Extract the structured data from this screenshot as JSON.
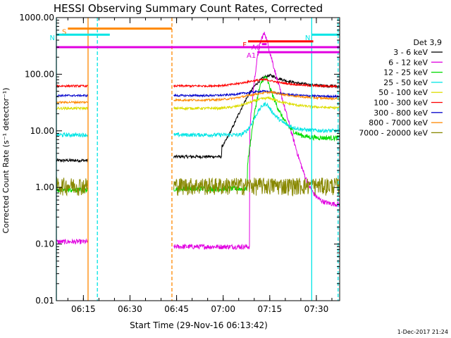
{
  "chart_data": {
    "type": "line",
    "title": "HESSI Observing Summary Count Rates, Corrected",
    "xlabel": "Start Time (29-Nov-16 06:13:42)",
    "ylabel": "Corrected Count Rate (s⁻¹ detector⁻¹)",
    "yscale": "log",
    "ylim": [
      0.01,
      1000
    ],
    "xlim_minutes": [
      6.3,
      97.5
    ],
    "yticks": [
      {
        "value": 1000,
        "label": "1000.00"
      },
      {
        "value": 100,
        "label": "100.00"
      },
      {
        "value": 10,
        "label": "10.00"
      },
      {
        "value": 1,
        "label": "1.00"
      },
      {
        "value": 0.1,
        "label": "0.10"
      },
      {
        "value": 0.01,
        "label": "0.01"
      }
    ],
    "xticks": [
      {
        "t": 15,
        "label": "06:15"
      },
      {
        "t": 30,
        "label": "06:30"
      },
      {
        "t": 45,
        "label": "06:45"
      },
      {
        "t": 60,
        "label": "07:00"
      },
      {
        "t": 75,
        "label": "07:15"
      },
      {
        "t": 90,
        "label": "07:30"
      },
      {
        "t": 105,
        "label": "07:45"
      }
    ],
    "legend_title": "Det 3,9",
    "legend_position": "right",
    "series": [
      {
        "name": "3 - 6 keV",
        "color": "#000000",
        "base1": 3.0,
        "base2": 3.5,
        "peak": 95,
        "peak_t": 75.5,
        "width": 8,
        "tail": 60,
        "noise": 0.06
      },
      {
        "name": "6 - 12 keV",
        "color": "#e100e1",
        "base1": 0.11,
        "base2": 0.09,
        "peak": 520,
        "peak_t": 73.5,
        "width": 2.5,
        "tail": 0.5,
        "noise": 0.1
      },
      {
        "name": "12 - 25 keV",
        "color": "#00dd00",
        "base1": 0.9,
        "base2": 0.95,
        "peak": 90,
        "peak_t": 73.8,
        "width": 3,
        "tail": 7.5,
        "noise": 0.1
      },
      {
        "name": "25 - 50 keV",
        "color": "#00e5e5",
        "base1": 8.5,
        "base2": 8.5,
        "peak": 30,
        "peak_t": 74,
        "width": 4,
        "tail": 10,
        "noise": 0.08
      },
      {
        "name": "50 - 100 keV",
        "color": "#dddd00",
        "base1": 25,
        "base2": 25,
        "peak": 38,
        "peak_t": 75,
        "width": 8,
        "tail": 25,
        "noise": 0.05
      },
      {
        "name": "100 - 300 keV",
        "color": "#ff0000",
        "base1": 62,
        "base2": 62,
        "peak": 80,
        "peak_t": 74,
        "width": 9,
        "tail": 60,
        "noise": 0.04
      },
      {
        "name": "300 - 800 keV",
        "color": "#0000cc",
        "base1": 42,
        "base2": 42,
        "peak": 50,
        "peak_t": 74,
        "width": 9,
        "tail": 40,
        "noise": 0.04
      },
      {
        "name": "800 - 7000 keV",
        "color": "#ff8800",
        "base1": 32,
        "base2": 35,
        "peak": 48,
        "peak_t": 76,
        "width": 10,
        "tail": 36,
        "noise": 0.04
      },
      {
        "name": "7000 - 20000 keV",
        "color": "#888800",
        "base1": 1.1,
        "base2": 1.1,
        "peak": 1.1,
        "peak_t": 74,
        "width": 5,
        "tail": 1.1,
        "noise": 0.35
      }
    ],
    "gaps": [
      [
        16.5,
        44
      ]
    ],
    "markers": [
      {
        "label": "S",
        "color": "#ff8800",
        "t_start": 10,
        "t_end": 43.5,
        "y": 640
      },
      {
        "label": "N",
        "color": "#00e5e5",
        "t_start": 6.3,
        "t_end": 23.5,
        "y": 500
      },
      {
        "label": "N",
        "color": "#00e5e5",
        "t_start": 88.5,
        "t_end": 97.5,
        "y": 500
      },
      {
        "label": "F",
        "color": "#ff0000",
        "t_start": 68,
        "t_end": 89,
        "y": 380
      },
      {
        "label": "",
        "color": "#e100e1",
        "t_start": 6.3,
        "t_end": 97.5,
        "y": 300
      },
      {
        "label": "A1",
        "color": "#e100e1",
        "t_start": 71,
        "t_end": 97.5,
        "y": 245
      },
      {
        "label": "A0",
        "color": "#e100e1",
        "t_start": 72.5,
        "t_end": 74,
        "y": 340
      }
    ],
    "vlines": [
      {
        "t": 16.5,
        "color": "#ff8800",
        "style": "solid"
      },
      {
        "t": 19.5,
        "color": "#00e5e5",
        "style": "dashed"
      },
      {
        "t": 43.5,
        "color": "#ff8800",
        "style": "dashed"
      },
      {
        "t": 88.5,
        "color": "#00e5e5",
        "style": "solid"
      },
      {
        "t": 97,
        "color": "#00e5e5",
        "style": "dashed"
      },
      {
        "t": 6.3,
        "color": "#00e5e5",
        "style": "solid"
      }
    ]
  },
  "footer": {
    "timestamp": "1-Dec-2017 21:24"
  }
}
